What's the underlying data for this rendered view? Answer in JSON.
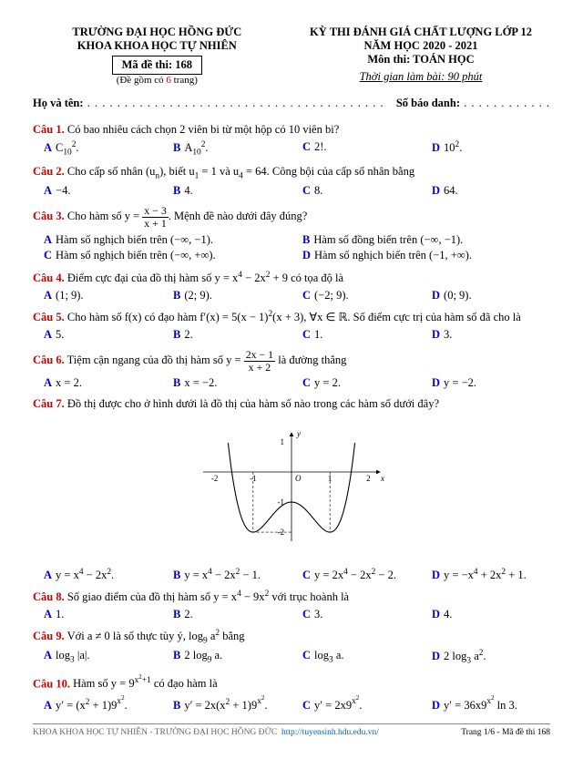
{
  "header": {
    "school1": "TRƯỜNG ĐẠI HỌC HỒNG ĐỨC",
    "school2": "KHOA KHOA HỌC TỰ NHIÊN",
    "examcode_label": "Mã đề thi: 168",
    "pages": "(Đề gồm có ",
    "pages_num": "6",
    "pages_end": " trang)",
    "exam_title": "KỲ THI ĐÁNH GIÁ CHẤT LƯỢNG LỚP 12",
    "year": "NĂM HỌC 2020 - 2021",
    "subject": "Môn thi: TOÁN HỌC",
    "time": "Thời gian làm bài: 90 phút"
  },
  "namerow": {
    "fullname": "Họ và tên:",
    "sbd": "Số báo danh:"
  },
  "questions": [
    {
      "n": "Câu 1.",
      "text": " Có bao nhiêu cách chọn 2 viên bi từ một hộp có 10 viên bi?",
      "opts": [
        "C<sub>10</sub><sup>2</sup>.",
        "A<sub>10</sub><sup>2</sup>.",
        "2!.",
        "10<sup>2</sup>."
      ]
    },
    {
      "n": "Câu 2.",
      "text": " Cho cấp số nhân (u<sub>n</sub>), biết u<sub>1</sub> = 1 và u<sub>4</sub> = 64. Công bội của cấp số nhân bằng",
      "opts": [
        "−4.",
        "4.",
        "8.",
        "64."
      ]
    },
    {
      "n": "Câu 3.",
      "text": " Cho hàm số y = <span class=\"frac\"><span class=\"num\">x − 3</span><span class=\"den\">x + 1</span></span>. Mệnh đề nào dưới đây đúng?",
      "opts2": [
        "Hàm số nghịch biến trên (−∞, −1).",
        "Hàm số đồng biến trên (−∞, −1).",
        "Hàm số nghịch biến trên (−∞, +∞).",
        "Hàm số nghịch biến trên (−1, +∞)."
      ]
    },
    {
      "n": "Câu 4.",
      "text": " Điểm cực đại của đồ thị hàm số y = x<sup>4</sup> − 2x<sup>2</sup> + 9 có tọa độ là",
      "opts": [
        "(1; 9).",
        "(2; 9).",
        "(−2; 9).",
        "(0; 9)."
      ]
    },
    {
      "n": "Câu 5.",
      "text": " Cho hàm số f(x) có đạo hàm f′(x) = 5(x − 1)<sup>2</sup>(x + 3), ∀x ∈ ℝ. Số điểm cực trị của hàm số đã cho là",
      "opts": [
        "5.",
        "2.",
        "1.",
        "3."
      ]
    },
    {
      "n": "Câu 6.",
      "text": " Tiệm cận ngang của đồ thị hàm số y = <span class=\"frac\"><span class=\"num\">2x − 1</span><span class=\"den\">x + 2</span></span> là đường thẳng",
      "opts": [
        "x = 2.",
        "x = −2.",
        "y = 2.",
        "y = −2."
      ]
    },
    {
      "n": "Câu 7.",
      "text": " Đồ thị được cho ở hình dưới là đồ thị của hàm số nào trong các hàm số dưới đây?",
      "graph": true,
      "opts": [
        "y = x<sup>4</sup> − 2x<sup>2</sup>.",
        "y = x<sup>4</sup> − 2x<sup>2</sup> − 1.",
        "y = 2x<sup>4</sup> − 2x<sup>2</sup> − 2.",
        "y = −x<sup>4</sup> + 2x<sup>2</sup> + 1."
      ]
    },
    {
      "n": "Câu 8.",
      "text": " Số giao điểm của đồ thị hàm số y = x<sup>4</sup> − 9x<sup>2</sup> với trục hoành là",
      "opts": [
        "1.",
        "2.",
        "3.",
        "4."
      ]
    },
    {
      "n": "Câu 9.",
      "text": " Với a ≠ 0 là số thực tùy ý, log<sub>9</sub> a<sup>2</sup> bằng",
      "opts": [
        "log<sub>3</sub> |a|.",
        "2 log<sub>9</sub> a.",
        "log<sub>3</sub> a.",
        "2 log<sub>3</sub> a<sup>2</sup>."
      ]
    },
    {
      "n": "Câu 10.",
      "text": " Hàm số y = 9<sup>x<sup>2</sup>+1</sup> có đạo hàm là",
      "opts": [
        "y′ = (x<sup>2</sup> + 1)9<sup>x<sup>2</sup></sup>.",
        "y′ = 2x(x<sup>2</sup> + 1)9<sup>x<sup>2</sup></sup>.",
        "y′ = 2x9<sup>x<sup>2</sup></sup>.",
        "y′ = 36x9<sup>x<sup>2</sup></sup> ln 3."
      ]
    }
  ],
  "graph": {
    "type": "function-plot",
    "function": "y = x^4 - 2x^2 - 1",
    "xlim": [
      -2.3,
      2.3
    ],
    "ylim": [
      -2.3,
      1.3
    ],
    "xticks": [
      -2,
      -1,
      1,
      2
    ],
    "yticks": [
      -2,
      -1,
      1
    ],
    "critical_points": [
      [
        -1,
        -2
      ],
      [
        0,
        -1
      ],
      [
        1,
        -2
      ]
    ],
    "axis_color": "#000000",
    "curve_color": "#000000",
    "dash_color": "#000000",
    "axis_fontsize": 10,
    "label_x": "x",
    "label_y": "y",
    "origin_label": "O"
  },
  "footer": {
    "left": "KHOA KHOA HỌC TỰ NHIÊN - TRƯỜNG ĐẠI HỌC HỒNG ĐỨC",
    "url": "http://tuyensinh.hdu.edu.vn/",
    "right": "Trang 1/6 - Mã đề thi 168"
  },
  "letters": [
    "A",
    "B",
    "C",
    "D"
  ]
}
